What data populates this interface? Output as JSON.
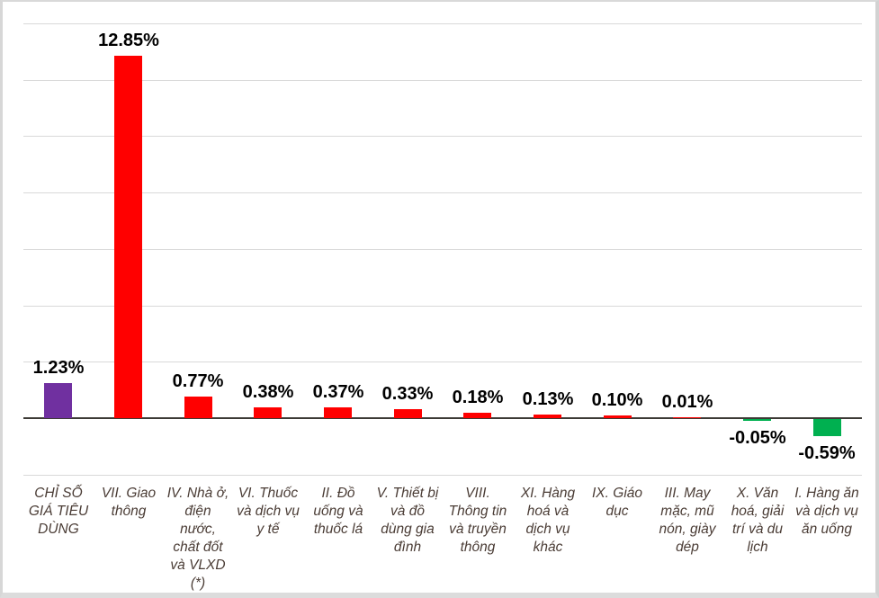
{
  "chart_data": {
    "type": "bar",
    "title": "",
    "xlabel": "",
    "ylabel": "",
    "ylim": [
      -2,
      14
    ],
    "gridline_interval": 2,
    "grid": true,
    "legend": false,
    "y_tick_labels_visible": false,
    "categories": [
      "CHỈ SỐ\nGIÁ TIÊU\nDÙNG",
      "VII. Giao\nthông",
      "IV. Nhà ở,\nđiện\nnước,\nchất đốt\nvà VLXD\n(*)",
      "VI. Thuốc\nvà dịch vụ\ny tế",
      "II. Đồ\nuống và\nthuốc lá",
      "V. Thiết bị\nvà đồ\ndùng gia\nđình",
      "VIII.\nThông tin\nvà truyền\nthông",
      "XI. Hàng\nhoá và\ndịch vụ\nkhác",
      "IX. Giáo\ndục",
      "III. May\nmặc, mũ\nnón, giày\ndép",
      "X. Văn\nhoá, giải\ntrí và du\nlịch",
      "I. Hàng ăn\nvà dịch vụ\năn uống"
    ],
    "values": [
      1.23,
      12.85,
      0.77,
      0.38,
      0.37,
      0.33,
      0.18,
      0.13,
      0.1,
      0.01,
      -0.05,
      -0.59
    ],
    "value_labels": [
      "1.23%",
      "12.85%",
      "0.77%",
      "0.38%",
      "0.37%",
      "0.33%",
      "0.18%",
      "0.13%",
      "0.10%",
      "0.01%",
      "-0.05%",
      "-0.59%"
    ],
    "bar_colors": [
      "#7030A0",
      "#FF0000",
      "#FF0000",
      "#FF0000",
      "#FF0000",
      "#FF0000",
      "#FF0000",
      "#FF0000",
      "#FF0000",
      "#FF0000",
      "#00B050",
      "#00B050"
    ]
  },
  "colors": {
    "cpi_bar": "#7030A0",
    "increase_bar": "#FF0000",
    "decrease_bar": "#00B050",
    "gridline": "#D9D9D9",
    "axis_line": "#3C3A35",
    "value_label": "#000000",
    "category_label": "#4A3C35",
    "background": "#FFFFFF",
    "frame_border": "#D9D9D9"
  }
}
